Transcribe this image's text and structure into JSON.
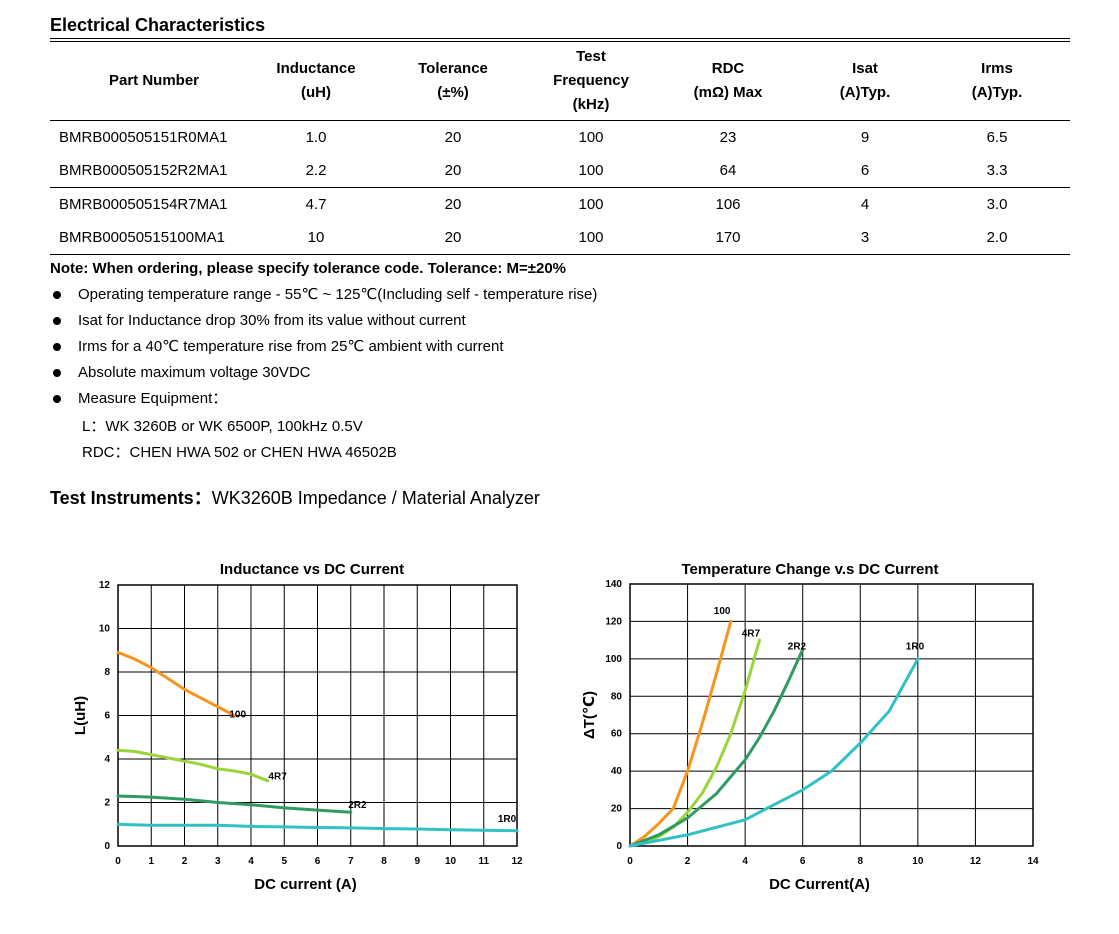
{
  "section_title": "Electrical Characteristics",
  "table": {
    "headers": [
      [
        "Part Number"
      ],
      [
        "Inductance",
        "(uH)"
      ],
      [
        "Tolerance",
        "(±%)"
      ],
      [
        "Test",
        "Frequency",
        "(kHz)"
      ],
      [
        "RDC",
        "(mΩ) Max"
      ],
      [
        "Isat",
        "(A)Typ."
      ],
      [
        "Irms",
        "(A)Typ."
      ]
    ],
    "rows": [
      [
        "BMRB000505151R0MA1",
        "1.0",
        "20",
        "100",
        "23",
        "9",
        "6.5"
      ],
      [
        "BMRB000505152R2MA1",
        "2.2",
        "20",
        "100",
        "64",
        "6",
        "3.3"
      ],
      [
        "BMRB000505154R7MA1",
        "4.7",
        "20",
        "100",
        "106",
        "4",
        "3.0"
      ],
      [
        "BMRB00050515100MA1",
        "10",
        "20",
        "100",
        "170",
        "3",
        "2.0"
      ]
    ]
  },
  "note": "Note: When ordering, please specify tolerance code. Tolerance: M=±20%",
  "bullets": [
    "Operating temperature range - 55℃ ~ 125℃(Including self - temperature rise)",
    "Isat for Inductance drop 30% from its value without current",
    "Irms for a 40℃  temperature rise from 25℃  ambient with current",
    "Absolute maximum voltage 30VDC",
    "Measure Equipment："
  ],
  "equipment": [
    "L：WK 3260B or WK 6500P, 100kHz 0.5V",
    "RDC：CHEN HWA 502 or CHEN HWA 46502B"
  ],
  "instruments": {
    "label": "Test Instruments：",
    "value": "WK3260B Impedance / Material Analyzer"
  },
  "chart_data": [
    {
      "type": "line",
      "title": "Inductance vs DC Current",
      "xlabel": "DC current (A)",
      "ylabel": "L(uH)",
      "xlim": [
        0,
        12
      ],
      "ylim": [
        0,
        12
      ],
      "xticks": [
        0,
        1,
        2,
        3,
        4,
        5,
        6,
        7,
        8,
        9,
        10,
        11,
        12
      ],
      "yticks": [
        0,
        2,
        4,
        6,
        8,
        10,
        12
      ],
      "grid": true,
      "series": [
        {
          "name": "100",
          "color": "#f7941d",
          "x": [
            0,
            0.5,
            1,
            1.5,
            2,
            2.5,
            3,
            3.5
          ],
          "y": [
            8.9,
            8.6,
            8.2,
            7.7,
            7.2,
            6.8,
            6.4,
            6.0
          ]
        },
        {
          "name": "4R7",
          "color": "#9bd33a",
          "x": [
            0,
            0.5,
            1,
            2,
            2.5,
            3,
            3.5,
            4,
            4.5
          ],
          "y": [
            4.4,
            4.35,
            4.2,
            3.9,
            3.75,
            3.55,
            3.45,
            3.3,
            3.0
          ]
        },
        {
          "name": "2R2",
          "color": "#2e9b63",
          "x": [
            0,
            1,
            2,
            3,
            4,
            5,
            6,
            7
          ],
          "y": [
            2.3,
            2.25,
            2.15,
            2.0,
            1.9,
            1.75,
            1.65,
            1.55
          ]
        },
        {
          "name": "1R0",
          "color": "#31c1c4",
          "x": [
            0,
            1,
            2,
            3,
            4,
            5,
            6,
            7,
            8,
            9,
            10,
            11,
            12
          ],
          "y": [
            1.0,
            0.95,
            0.95,
            0.95,
            0.9,
            0.88,
            0.85,
            0.83,
            0.8,
            0.78,
            0.75,
            0.72,
            0.7
          ]
        }
      ]
    },
    {
      "type": "line",
      "title": "Temperature Change v.s DC Current",
      "xlabel": "DC Current(A)",
      "ylabel": "ΔT(℃)",
      "xlim": [
        0,
        14
      ],
      "ylim": [
        0,
        140
      ],
      "xticks": [
        0,
        2,
        4,
        6,
        8,
        10,
        12,
        14
      ],
      "yticks": [
        0,
        20,
        40,
        60,
        80,
        100,
        120,
        140
      ],
      "grid": true,
      "series": [
        {
          "name": "100",
          "color": "#f7941d",
          "x": [
            0,
            0.5,
            1,
            1.5,
            2,
            2.5,
            3,
            3.5
          ],
          "y": [
            0,
            5,
            12,
            20,
            40,
            65,
            92,
            120
          ]
        },
        {
          "name": "4R7",
          "color": "#9bd33a",
          "x": [
            0,
            0.5,
            1,
            1.5,
            2,
            2.5,
            3,
            3.5,
            4,
            4.5
          ],
          "y": [
            0,
            2,
            5,
            10,
            18,
            28,
            42,
            60,
            83,
            110
          ]
        },
        {
          "name": "2R2",
          "color": "#2e9b63",
          "x": [
            0,
            1,
            2,
            3,
            4,
            4.5,
            5,
            5.5,
            6
          ],
          "y": [
            0,
            6,
            15,
            28,
            46,
            58,
            72,
            88,
            105
          ]
        },
        {
          "name": "1R0",
          "color": "#31c1c4",
          "x": [
            0,
            1,
            2,
            3,
            4,
            5,
            6,
            7,
            8,
            9,
            10
          ],
          "y": [
            0,
            3,
            6,
            10,
            14,
            22,
            30,
            40,
            55,
            72,
            100
          ]
        }
      ]
    }
  ]
}
